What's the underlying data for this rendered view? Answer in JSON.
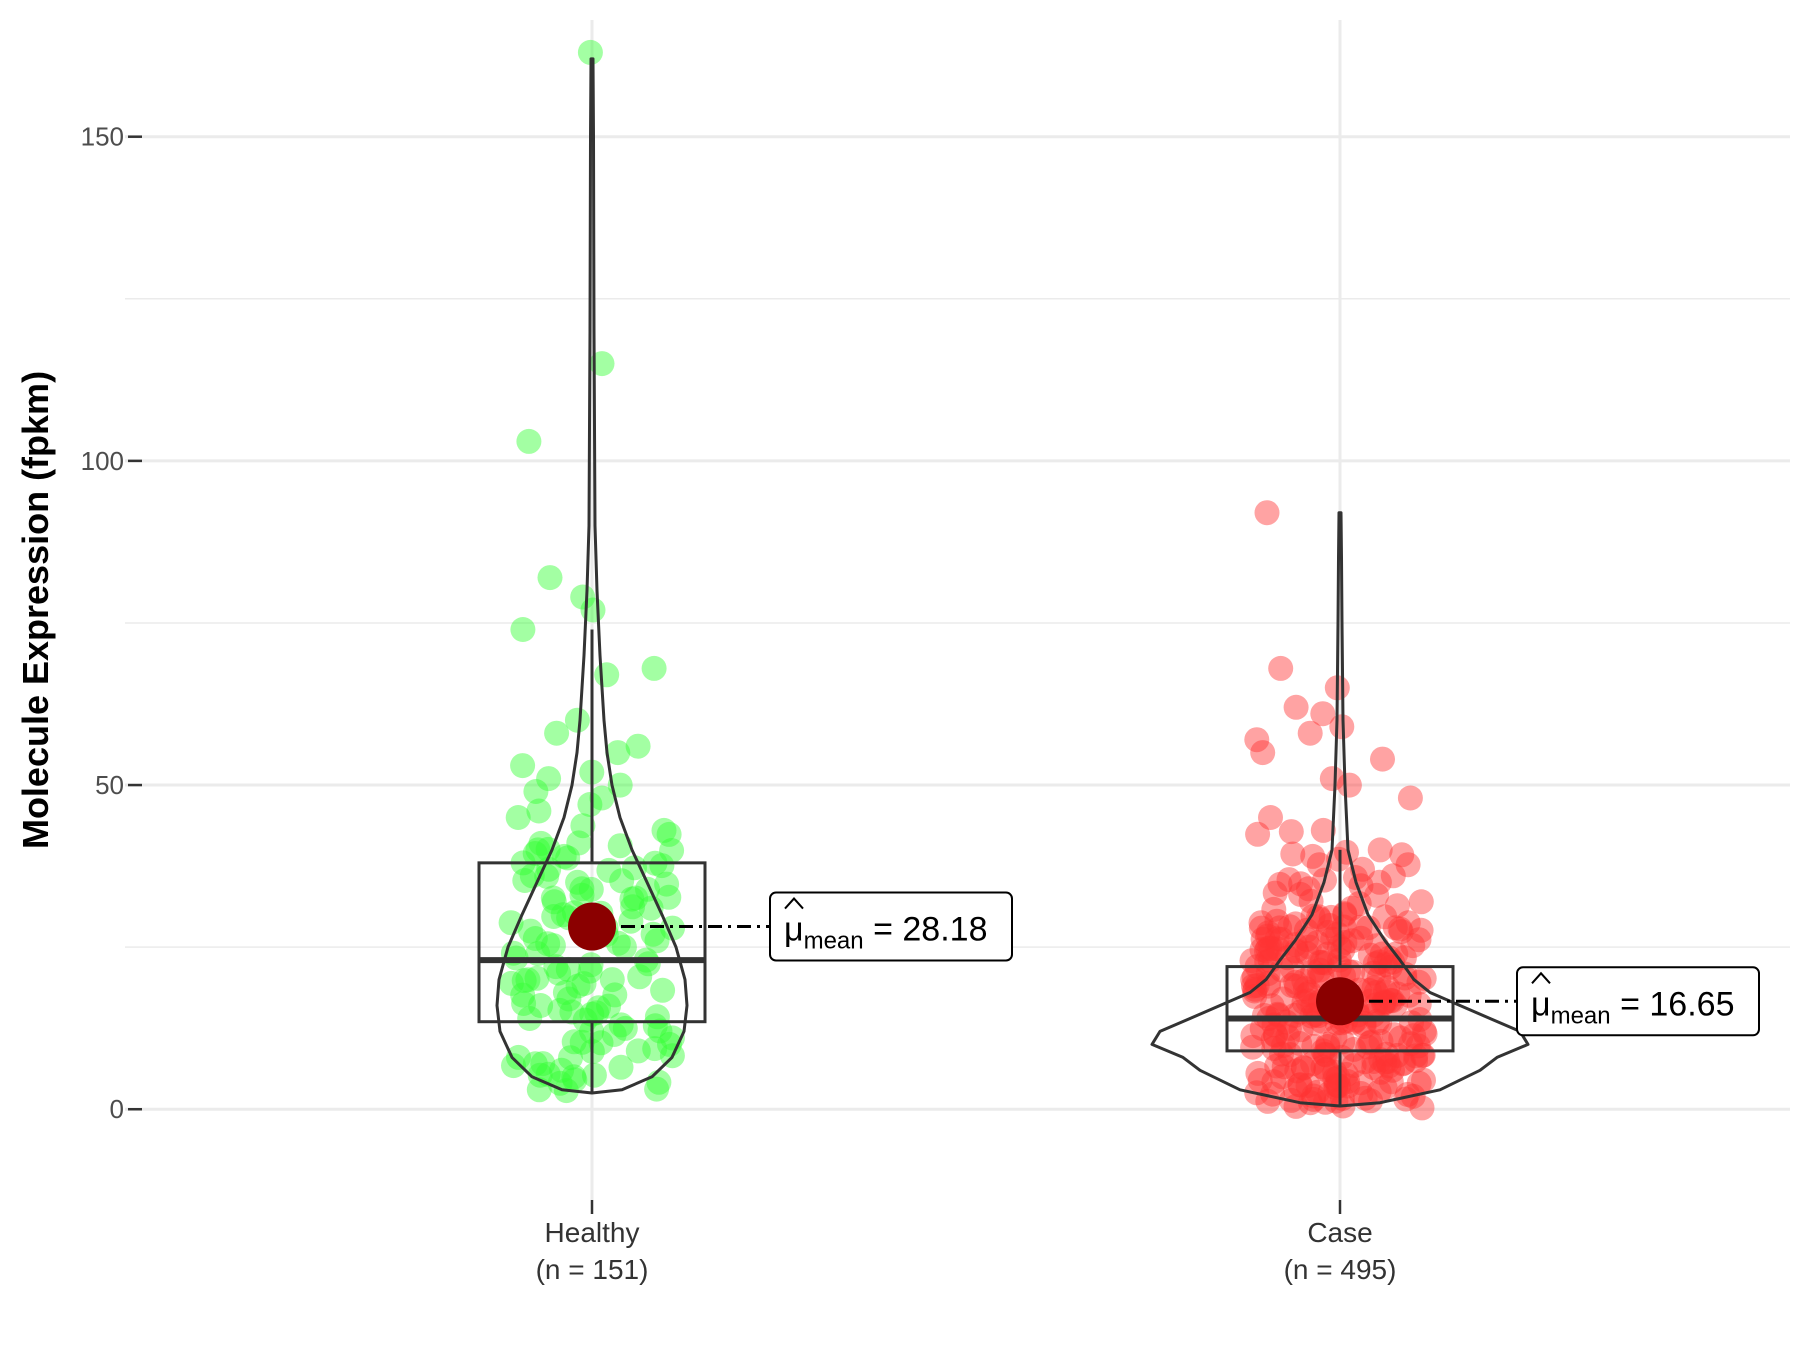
{
  "chart_data": {
    "type": "violin-box-scatter",
    "ylabel": "Molecule Expression (fpkm)",
    "ylim": [
      -14,
      168
    ],
    "yticks": [
      0,
      50,
      100,
      150
    ],
    "ygrid_minor": [
      25,
      75,
      125
    ],
    "grid": true,
    "mean_symbol": "μ",
    "mean_subscript": "mean",
    "groups": [
      {
        "name": "Healthy",
        "n_label": "(n = 151)",
        "color": "#33ff33",
        "box": {
          "q1": 13.5,
          "median": 23,
          "q3": 38,
          "whisker_low": 2.5,
          "whisker_high": 74
        },
        "mean": 28.18,
        "mean_label": "28.18",
        "points": [
          163,
          115,
          103,
          82,
          79,
          77,
          74,
          68,
          67,
          60,
          58,
          56,
          55,
          53,
          52,
          51,
          50,
          49,
          48,
          47,
          46,
          45,
          43,
          41,
          40,
          39,
          38,
          37,
          36,
          35,
          34,
          33,
          32,
          31,
          30,
          29,
          28,
          27,
          26,
          25,
          24,
          23,
          22,
          21,
          20,
          19,
          18,
          17,
          16,
          15,
          14,
          13,
          12,
          11,
          10,
          9,
          8,
          7,
          6,
          5,
          4,
          3
        ]
      },
      {
        "name": "Case",
        "n_label": "(n = 495)",
        "color": "#ff3333",
        "box": {
          "q1": 9,
          "median": 14,
          "q3": 22,
          "whisker_low": 0.5,
          "whisker_high": 40
        },
        "mean": 16.65,
        "mean_label": "16.65",
        "points": [
          92,
          68,
          65,
          62,
          61,
          59,
          58,
          57,
          55,
          54,
          51,
          50,
          48,
          45,
          43,
          40,
          39,
          37,
          36,
          35,
          34,
          33,
          32,
          31,
          30,
          29,
          28,
          27,
          26,
          25,
          24,
          23,
          22,
          21,
          20,
          19,
          18,
          17,
          16,
          15,
          14,
          13,
          12,
          11,
          10,
          9,
          8,
          7,
          6,
          5,
          4,
          3,
          2,
          1
        ]
      }
    ]
  }
}
